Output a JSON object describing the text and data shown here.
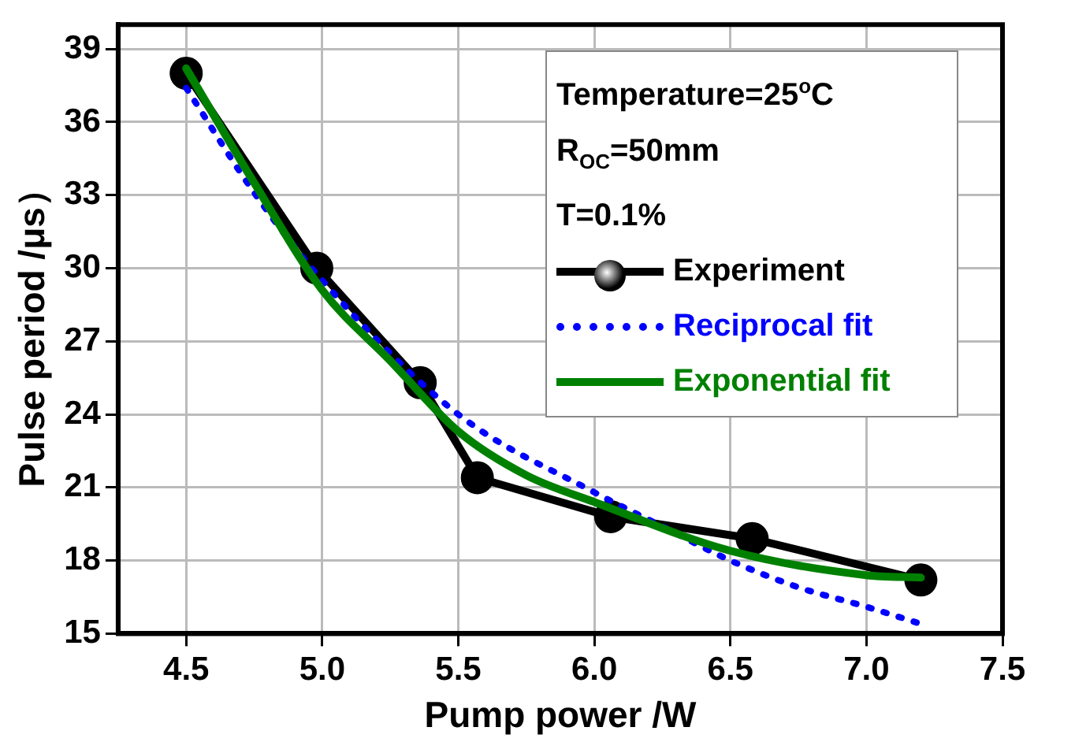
{
  "chart_data": {
    "type": "line",
    "xlabel": "Pump power /W",
    "ylabel": "Pulse period /μs）",
    "xlim": [
      4.25,
      7.5
    ],
    "xticks": [
      {
        "value": 4.5,
        "label": "4.5"
      },
      {
        "value": 5,
        "label": "5.0"
      },
      {
        "value": 5.5,
        "label": "5.5"
      },
      {
        "value": 6,
        "label": "6.0"
      },
      {
        "value": 6.5,
        "label": "6.5"
      },
      {
        "value": 7,
        "label": "7.0"
      },
      {
        "value": 7.5,
        "label": "7.5"
      }
    ],
    "ylim": [
      15,
      40
    ],
    "yticks": [
      15,
      18,
      21,
      24,
      27,
      30,
      33,
      36,
      39
    ],
    "grid": true,
    "legend": "top right",
    "annotations": [
      "Temperature=25$^{o}$C",
      "R$_{OC}$=50mm",
      "T=0.1%"
    ],
    "series": [
      {
        "name": "Experiment",
        "color": "#000000",
        "marker": "circle",
        "line_style": "solid",
        "x": [
          4.5,
          4.98,
          5.36,
          5.57,
          6.06,
          6.58,
          7.2
        ],
        "values": [
          38.0,
          30.0,
          25.3,
          21.4,
          19.8,
          18.9,
          17.2
        ]
      },
      {
        "name": "Reciprocal fit",
        "color": "#0000ff",
        "marker": "none",
        "line_style": "dotted",
        "x": [
          4.5,
          4.75,
          5.0,
          5.5,
          6.0,
          6.25,
          6.5,
          6.75,
          7.0,
          7.2
        ],
        "values": [
          37.4,
          33.1,
          29.5,
          24.0,
          20.8,
          19.4,
          18.0,
          16.9,
          16.1,
          15.4
        ]
      },
      {
        "name": "Exponential fit",
        "color": "#008000",
        "marker": "none",
        "line_style": "solid",
        "x": [
          4.5,
          4.75,
          5.0,
          5.25,
          5.5,
          5.75,
          6.0,
          6.5,
          7.0,
          7.2
        ],
        "values": [
          38.2,
          33.5,
          29.1,
          26.2,
          23.3,
          21.5,
          20.4,
          18.4,
          17.4,
          17.3
        ]
      }
    ]
  }
}
